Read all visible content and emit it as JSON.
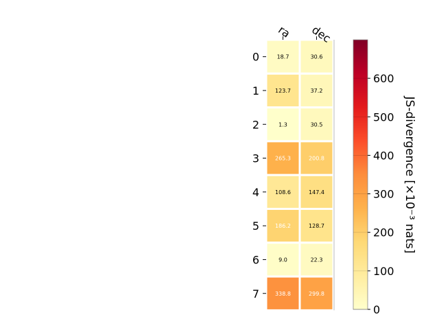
{
  "chart_data": {
    "type": "heatmap",
    "columns": [
      "ra",
      "dec"
    ],
    "rows": [
      "0",
      "1",
      "2",
      "3",
      "4",
      "5",
      "6",
      "7"
    ],
    "values": [
      [
        18.7,
        30.6
      ],
      [
        123.7,
        37.2
      ],
      [
        1.3,
        30.5
      ],
      [
        265.3,
        200.8
      ],
      [
        108.6,
        147.4
      ],
      [
        186.2,
        128.7
      ],
      [
        9.0,
        22.3
      ],
      [
        338.8,
        299.8
      ]
    ],
    "value_labels": [
      [
        "18.7",
        "30.6"
      ],
      [
        "123.7",
        "37.2"
      ],
      [
        "1.3",
        "30.5"
      ],
      [
        "265.3",
        "200.8"
      ],
      [
        "108.6",
        "147.4"
      ],
      [
        "186.2",
        "128.7"
      ],
      [
        "9.0",
        "22.3"
      ],
      [
        "338.8",
        "299.8"
      ]
    ],
    "colorbar": {
      "label": "JS-divergence [×10⁻³ nats]",
      "colormap": "YlOrRd",
      "range": [
        0,
        700
      ],
      "ticks": [
        0,
        100,
        200,
        300,
        400,
        500,
        600
      ],
      "tick_labels": [
        "0",
        "100",
        "200",
        "300",
        "400",
        "500",
        "600"
      ]
    },
    "grid": false,
    "legend": "none",
    "colors": {
      "cmap_stops": [
        "#ffffcc",
        "#ffeda0",
        "#fed976",
        "#feb24c",
        "#fd8d3c",
        "#fc4e2a",
        "#e31a1c",
        "#bd0026",
        "#800026"
      ],
      "cell_border": "#ffffff",
      "dark_text": "#000000",
      "light_text": "#ffffff"
    }
  }
}
